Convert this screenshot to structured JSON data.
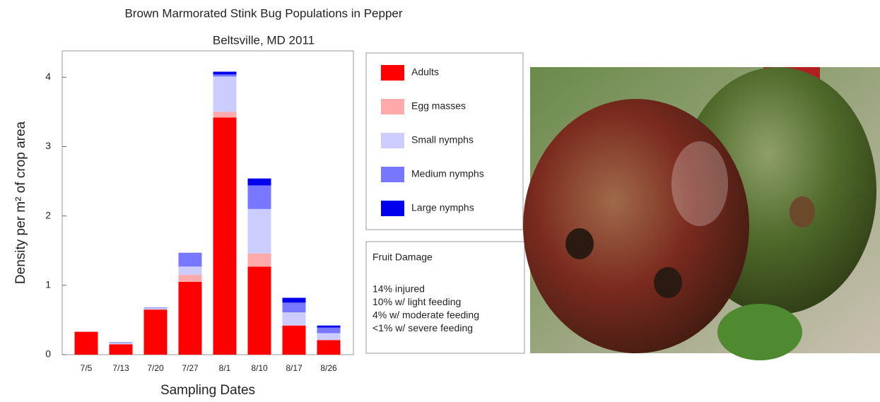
{
  "chart_data": {
    "type": "stacked_bar",
    "title": "Brown Marmorated Stink Bug Populations in Pepper",
    "subtitle": "Beltsville, MD 2011",
    "x_label": "Sampling Dates",
    "y_label": "Density per m² of crop area",
    "categories": [
      "7/5",
      "7/13",
      "7/20",
      "7/27",
      "8/1",
      "8/10",
      "8/17",
      "8/26"
    ],
    "series": [
      {
        "name": "Adults",
        "color": "#ff0000",
        "values": [
          0.33,
          0.15,
          0.65,
          1.05,
          3.42,
          1.27,
          0.42,
          0.21
        ]
      },
      {
        "name": "Egg masses",
        "color": "#ffaaaa",
        "values": [
          0,
          0,
          0,
          0.1,
          0.08,
          0.19,
          0,
          0
        ]
      },
      {
        "name": "Small nymphs",
        "color": "#ccccff",
        "values": [
          0,
          0.02,
          0.02,
          0.12,
          0.51,
          0.64,
          0.19,
          0.1
        ]
      },
      {
        "name": "Medium nymphs",
        "color": "#7777ff",
        "values": [
          0,
          0.01,
          0.01,
          0.2,
          0.03,
          0.34,
          0.14,
          0.08
        ]
      },
      {
        "name": "Large nymphs",
        "color": "#0000ee",
        "values": [
          0,
          0,
          0,
          0,
          0.04,
          0.1,
          0.07,
          0.03
        ]
      }
    ],
    "ylim": [
      0,
      4.38
    ],
    "yticks": [
      0,
      1,
      2,
      3,
      4
    ],
    "annotation": {
      "title": "Fruit Damage",
      "lines": [
        "14% injured",
        "10% w/ light feeding",
        "4% w/ moderate feeding",
        "<1% w/ severe feeding"
      ]
    }
  }
}
